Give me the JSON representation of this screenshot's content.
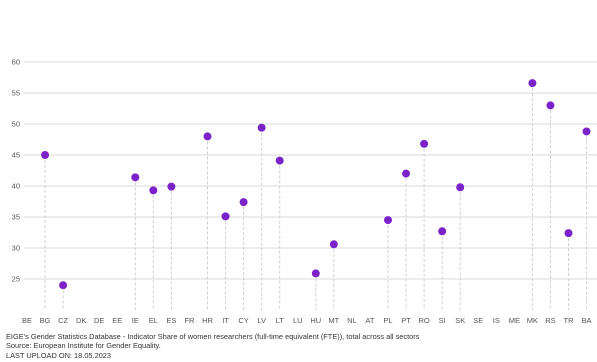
{
  "chart_data": {
    "type": "scatter",
    "title": "",
    "xlabel": "",
    "ylabel": "",
    "ylim": [
      20,
      60
    ],
    "yticks": [
      25,
      30,
      35,
      40,
      45,
      50,
      55,
      60
    ],
    "grid": true,
    "categories": [
      "BE",
      "BG",
      "CZ",
      "DK",
      "DE",
      "EE",
      "IE",
      "EL",
      "ES",
      "FR",
      "HR",
      "IT",
      "CY",
      "LV",
      "LT",
      "LU",
      "HU",
      "MT",
      "NL",
      "AT",
      "PL",
      "PT",
      "RO",
      "SI",
      "SK",
      "SE",
      "IS",
      "ME",
      "MK",
      "RS",
      "TR",
      "BA"
    ],
    "values": [
      null,
      45.0,
      24.0,
      null,
      null,
      null,
      41.4,
      39.3,
      39.9,
      null,
      48.0,
      35.1,
      37.4,
      49.4,
      44.1,
      null,
      25.9,
      30.6,
      null,
      null,
      34.5,
      42.0,
      46.8,
      32.7,
      39.8,
      null,
      null,
      null,
      56.6,
      53.0,
      32.4,
      48.8
    ],
    "point_color": "#7b22c9",
    "grid_color": "#d9d9d9",
    "drop_line_color": "#cfcfcf"
  },
  "footer": {
    "line1": "EIGE's Gender Statistics Database - Indicator Share of women researchers (full-time equivalent (FTE)), total across all sectors",
    "line2": "Source: European Institute for Gender Equality.",
    "line3": "LAST UPLOAD ON: 18.05.2023"
  }
}
